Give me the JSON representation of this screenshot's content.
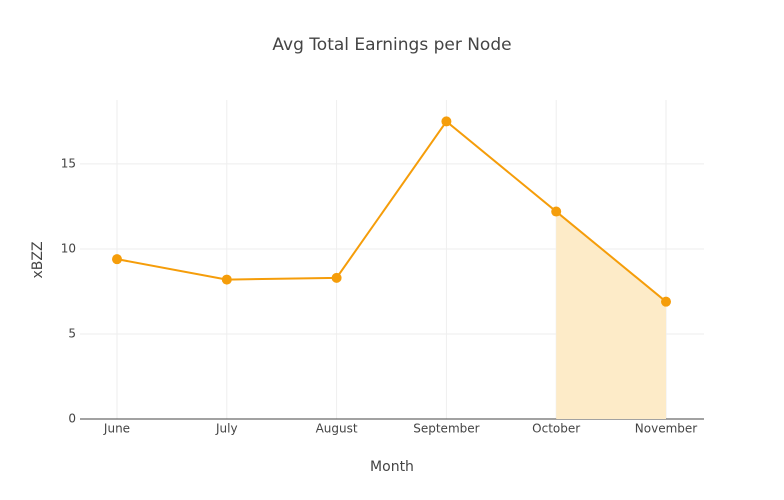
{
  "chart_data": {
    "type": "line",
    "title": "Avg Total Earnings per Node",
    "x_label": "Month",
    "y_label": "xBZZ",
    "categories": [
      "June",
      "July",
      "August",
      "September",
      "October",
      "November"
    ],
    "series": [
      {
        "color": "#f59d0a",
        "values": [
          9.4,
          8.2,
          8.3,
          17.5,
          12.2,
          6.9
        ]
      },
      {
        "color": "#fdebc8",
        "fill": "tozeroy",
        "values": [
          null,
          null,
          null,
          null,
          12.2,
          6.9
        ]
      }
    ],
    "ylim": [
      0,
      18.76
    ],
    "yticks": [
      0,
      5,
      10,
      15
    ],
    "grid": true
  }
}
